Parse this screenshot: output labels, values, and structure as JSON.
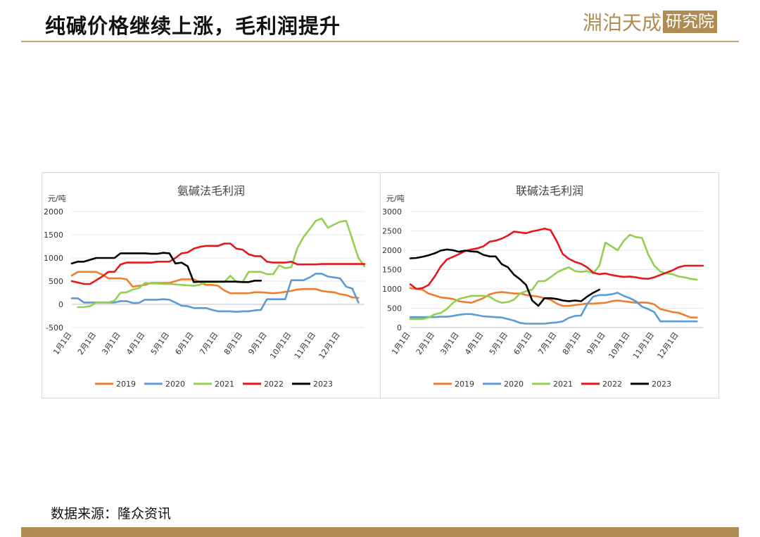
{
  "page": {
    "title": "纯碱价格继续上涨，毛利润提升",
    "logo_text": "淵泊天成",
    "logo_box": "研究院",
    "source": "数据来源：隆众资讯"
  },
  "colors": {
    "accent": "#b08c52",
    "series": {
      "2019": "#ed7d31",
      "2020": "#5b9bd5",
      "2021": "#92d050",
      "2022": "#e8161b",
      "2023": "#000000"
    }
  },
  "chart_data": [
    {
      "type": "line",
      "title": "氨碱法毛利润",
      "ylabel": "元/吨",
      "ylim": [
        -500,
        2000
      ],
      "yticks": [
        -500,
        0,
        500,
        1000,
        1500,
        2000
      ],
      "xticks": [
        "1月1日",
        "2月1日",
        "3月1日",
        "4月1日",
        "5月1日",
        "6月1日",
        "7月1日",
        "8月1日",
        "9月1日",
        "10月1日",
        "11月1日",
        "12月1日"
      ],
      "xlim": [
        0,
        48
      ],
      "series": [
        {
          "name": "2019",
          "x": [
            0,
            1,
            2,
            3,
            4,
            5,
            6,
            7,
            8,
            9,
            10,
            11,
            12,
            13,
            14,
            15,
            16,
            17,
            18,
            19,
            20,
            21,
            22,
            23,
            24,
            25,
            26,
            27,
            28,
            29,
            30,
            31,
            32,
            33,
            34,
            35,
            36,
            37,
            38,
            39,
            40,
            41,
            42,
            43,
            44,
            45,
            46,
            47
          ],
          "values": [
            620,
            700,
            700,
            700,
            700,
            640,
            560,
            560,
            560,
            540,
            380,
            400,
            420,
            460,
            460,
            460,
            460,
            500,
            540,
            540,
            540,
            480,
            420,
            420,
            400,
            300,
            240,
            240,
            240,
            240,
            260,
            260,
            250,
            240,
            250,
            270,
            290,
            320,
            330,
            330,
            330,
            290,
            270,
            260,
            220,
            200,
            150,
            140
          ]
        },
        {
          "name": "2020",
          "x": [
            0,
            1,
            2,
            3,
            4,
            5,
            6,
            7,
            8,
            9,
            10,
            11,
            12,
            13,
            14,
            15,
            16,
            17,
            18,
            19,
            20,
            21,
            22,
            23,
            24,
            25,
            26,
            27,
            28,
            29,
            30,
            31,
            32,
            33,
            34,
            35,
            36,
            37,
            38,
            39,
            40,
            41,
            42,
            43,
            44,
            45,
            46,
            47
          ],
          "values": [
            130,
            130,
            40,
            40,
            40,
            40,
            40,
            40,
            70,
            70,
            30,
            30,
            100,
            100,
            100,
            110,
            100,
            40,
            -30,
            -40,
            -80,
            -80,
            -80,
            -120,
            -150,
            -150,
            -150,
            -160,
            -150,
            -150,
            -130,
            -120,
            110,
            110,
            110,
            110,
            520,
            520,
            520,
            580,
            660,
            660,
            600,
            580,
            560,
            380,
            340,
            40
          ]
        },
        {
          "name": "2021",
          "x": [
            1,
            2,
            3,
            4,
            5,
            6,
            7,
            8,
            9,
            10,
            11,
            12,
            13,
            14,
            15,
            16,
            17,
            18,
            19,
            20,
            21,
            22,
            23,
            24,
            25,
            26,
            27,
            28,
            29,
            30,
            31,
            32,
            33,
            34,
            35,
            36,
            37,
            38,
            39,
            40,
            41,
            42,
            43,
            44,
            45,
            46,
            47,
            48
          ],
          "values": [
            -60,
            -60,
            -40,
            40,
            40,
            40,
            80,
            250,
            260,
            320,
            350,
            460,
            450,
            450,
            440,
            440,
            430,
            420,
            410,
            400,
            420,
            480,
            480,
            480,
            480,
            620,
            480,
            480,
            700,
            700,
            700,
            650,
            650,
            840,
            780,
            800,
            1220,
            1450,
            1620,
            1800,
            1850,
            1650,
            1720,
            1780,
            1800,
            1400,
            1000,
            820
          ]
        },
        {
          "name": "2022",
          "x": [
            0,
            1,
            2,
            3,
            4,
            5,
            6,
            7,
            8,
            9,
            10,
            11,
            12,
            13,
            14,
            15,
            16,
            17,
            18,
            19,
            20,
            21,
            22,
            23,
            24,
            25,
            26,
            27,
            28,
            29,
            30,
            31,
            32,
            33,
            34,
            35,
            36,
            37,
            38,
            39,
            40,
            41,
            42,
            43,
            44,
            45,
            46,
            47,
            48
          ],
          "values": [
            500,
            470,
            440,
            440,
            520,
            600,
            700,
            700,
            860,
            900,
            900,
            900,
            900,
            900,
            920,
            920,
            920,
            1000,
            1100,
            1120,
            1200,
            1240,
            1260,
            1260,
            1260,
            1310,
            1310,
            1200,
            1180,
            1080,
            1040,
            1040,
            920,
            900,
            900,
            900,
            920,
            860,
            860,
            860,
            860,
            870,
            870,
            870,
            870,
            870,
            870,
            870,
            870
          ]
        },
        {
          "name": "2023",
          "x": [
            0,
            1,
            2,
            3,
            4,
            5,
            6,
            7,
            8,
            9,
            10,
            11,
            12,
            13,
            14,
            15,
            16,
            17,
            18,
            19,
            20,
            21,
            22,
            23,
            24,
            25,
            26,
            27,
            28,
            29,
            30,
            31
          ],
          "values": [
            880,
            920,
            920,
            960,
            1000,
            1000,
            1000,
            1000,
            1100,
            1100,
            1100,
            1100,
            1100,
            1090,
            1090,
            1110,
            1100,
            880,
            900,
            820,
            480,
            490,
            490,
            490,
            490,
            490,
            490,
            490,
            480,
            480,
            510,
            510
          ]
        }
      ]
    },
    {
      "type": "line",
      "title": "联碱法毛利润",
      "ylabel": "元/吨",
      "ylim": [
        0,
        3000
      ],
      "yticks": [
        0,
        500,
        1000,
        1500,
        2000,
        2500,
        3000
      ],
      "xticks": [
        "1月1日",
        "2月1日",
        "3月1日",
        "4月1日",
        "5月1日",
        "6月1日",
        "7月1日",
        "8月1日",
        "9月1日",
        "10月1日",
        "11月1日",
        "12月1日"
      ],
      "xlim": [
        0,
        48
      ],
      "series": [
        {
          "name": "2019",
          "x": [
            0,
            1,
            2,
            3,
            4,
            5,
            6,
            7,
            8,
            9,
            10,
            11,
            12,
            13,
            14,
            15,
            16,
            17,
            18,
            19,
            20,
            21,
            22,
            23,
            24,
            25,
            26,
            27,
            28,
            29,
            30,
            31,
            32,
            33,
            34,
            35,
            36,
            37,
            38,
            39,
            40,
            41,
            42,
            43,
            44,
            45,
            46,
            47
          ],
          "values": [
            1020,
            1000,
            980,
            880,
            830,
            780,
            760,
            740,
            680,
            660,
            640,
            700,
            760,
            860,
            900,
            920,
            900,
            880,
            880,
            840,
            820,
            800,
            760,
            720,
            620,
            560,
            560,
            580,
            600,
            620,
            620,
            630,
            640,
            680,
            700,
            680,
            660,
            640,
            650,
            640,
            600,
            480,
            440,
            400,
            380,
            320,
            260,
            260
          ]
        },
        {
          "name": "2020",
          "x": [
            0,
            1,
            2,
            3,
            4,
            5,
            6,
            7,
            8,
            9,
            10,
            11,
            12,
            13,
            14,
            15,
            16,
            17,
            18,
            19,
            20,
            21,
            22,
            23,
            24,
            25,
            26,
            27,
            28,
            29,
            30,
            31,
            32,
            33,
            34,
            35,
            36,
            37,
            38,
            39,
            40,
            41,
            42,
            43,
            44,
            45,
            46,
            47
          ],
          "values": [
            270,
            270,
            270,
            270,
            270,
            280,
            280,
            300,
            330,
            350,
            350,
            320,
            290,
            280,
            270,
            260,
            220,
            180,
            120,
            100,
            100,
            100,
            100,
            120,
            130,
            160,
            250,
            300,
            310,
            600,
            800,
            840,
            840,
            860,
            900,
            820,
            760,
            680,
            540,
            480,
            400,
            160,
            160,
            160,
            160,
            160,
            160,
            160
          ]
        },
        {
          "name": "2021",
          "x": [
            0,
            1,
            2,
            3,
            4,
            5,
            6,
            7,
            8,
            9,
            10,
            11,
            12,
            13,
            14,
            15,
            16,
            17,
            18,
            19,
            20,
            21,
            22,
            23,
            24,
            25,
            26,
            27,
            28,
            29,
            30,
            31,
            32,
            33,
            34,
            35,
            36,
            37,
            38,
            39,
            40,
            41,
            42,
            43,
            44,
            45,
            46,
            47
          ],
          "values": [
            220,
            220,
            220,
            260,
            340,
            380,
            480,
            640,
            740,
            780,
            820,
            820,
            820,
            800,
            700,
            640,
            660,
            720,
            880,
            940,
            980,
            1200,
            1200,
            1300,
            1420,
            1500,
            1560,
            1460,
            1440,
            1460,
            1400,
            1600,
            2200,
            2100,
            2000,
            2240,
            2400,
            2340,
            2320,
            1900,
            1600,
            1450,
            1400,
            1380,
            1320,
            1300,
            1260,
            1240
          ]
        },
        {
          "name": "2022",
          "x": [
            0,
            1,
            2,
            3,
            4,
            5,
            6,
            7,
            8,
            9,
            10,
            11,
            12,
            13,
            14,
            15,
            16,
            17,
            18,
            19,
            20,
            21,
            22,
            23,
            24,
            25,
            26,
            27,
            28,
            29,
            30,
            31,
            32,
            33,
            34,
            35,
            36,
            37,
            38,
            39,
            40,
            41,
            42,
            43,
            44,
            45,
            46,
            47,
            48
          ],
          "values": [
            1120,
            1000,
            1020,
            1100,
            1320,
            1580,
            1760,
            1830,
            1900,
            1980,
            2020,
            2050,
            2100,
            2220,
            2250,
            2300,
            2380,
            2480,
            2460,
            2440,
            2490,
            2520,
            2560,
            2520,
            2240,
            1900,
            1780,
            1700,
            1650,
            1560,
            1420,
            1380,
            1400,
            1360,
            1330,
            1310,
            1320,
            1300,
            1270,
            1260,
            1300,
            1360,
            1420,
            1480,
            1560,
            1600,
            1600,
            1600,
            1600
          ]
        },
        {
          "name": "2023",
          "x": [
            0,
            1,
            2,
            3,
            4,
            5,
            6,
            7,
            8,
            9,
            10,
            11,
            12,
            13,
            14,
            15,
            16,
            17,
            18,
            19,
            20,
            21,
            22,
            23,
            24,
            25,
            26,
            27,
            28,
            29,
            30,
            31
          ],
          "values": [
            1790,
            1800,
            1830,
            1870,
            1920,
            1990,
            2020,
            2000,
            1960,
            1990,
            1970,
            1960,
            1880,
            1840,
            1840,
            1640,
            1560,
            1370,
            1250,
            1100,
            700,
            560,
            760,
            760,
            740,
            700,
            680,
            700,
            680,
            800,
            900,
            980
          ]
        }
      ]
    }
  ]
}
